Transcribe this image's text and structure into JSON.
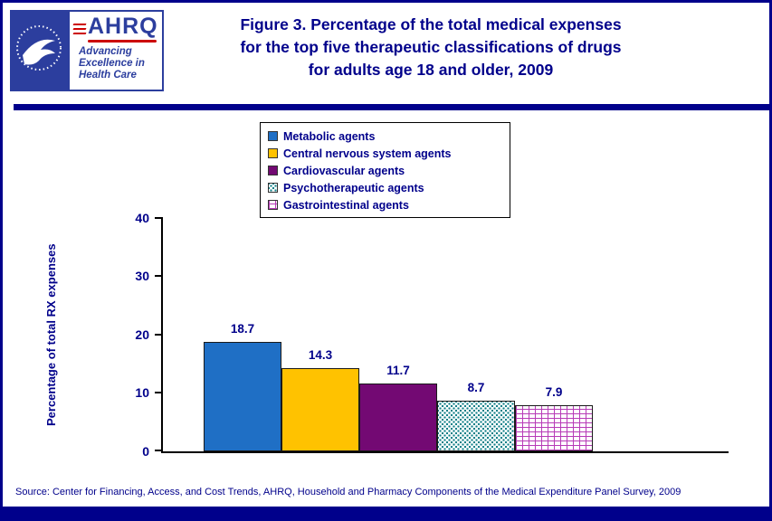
{
  "header": {
    "logo": {
      "ahrq_name": "AHRQ",
      "tagline_line1": "Advancing",
      "tagline_line2": "Excellence in",
      "tagline_line3": "Health Care"
    },
    "title_line1": "Figure 3. Percentage of the total medical expenses",
    "title_line2": "for the top five therapeutic classifications of drugs",
    "title_line3": "for adults age 18 and older, 2009"
  },
  "chart_data": {
    "type": "bar",
    "title": "Figure 3. Percentage of the total medical expenses for the top five therapeutic classifications of drugs for adults age 18 and older, 2009",
    "categories": [
      "Metabolic agents",
      "Central nervous system agents",
      "Cardiovascular agents",
      "Psychotherapeutic agents",
      "Gastrointestinal agents"
    ],
    "values": [
      18.7,
      14.3,
      11.7,
      8.7,
      7.9
    ],
    "value_labels": [
      "18.7",
      "14.3",
      "11.7",
      "8.7",
      "7.9"
    ],
    "xlabel": "",
    "ylabel": "Percentage of total RX expenses",
    "ylim": [
      0,
      40
    ],
    "yticks": [
      0,
      10,
      20,
      30,
      40
    ],
    "grid": false,
    "legend_position": "top",
    "series_fills": [
      "#1F6FC5",
      "#FFC200",
      "#730973",
      "teal-dots",
      "violet-bricks"
    ],
    "colors": {
      "navy": "#00008B",
      "bar_blue": "#1F6FC5",
      "bar_yellow": "#FFC200",
      "bar_purple": "#730973",
      "pattern_teal": "#0F7F87",
      "pattern_violet": "#B73BB7"
    }
  },
  "footer": {
    "source": "Source: Center for Financing, Access, and Cost Trends, AHRQ, Household and Pharmacy Components of the Medical Expenditure Panel Survey,  2009"
  }
}
